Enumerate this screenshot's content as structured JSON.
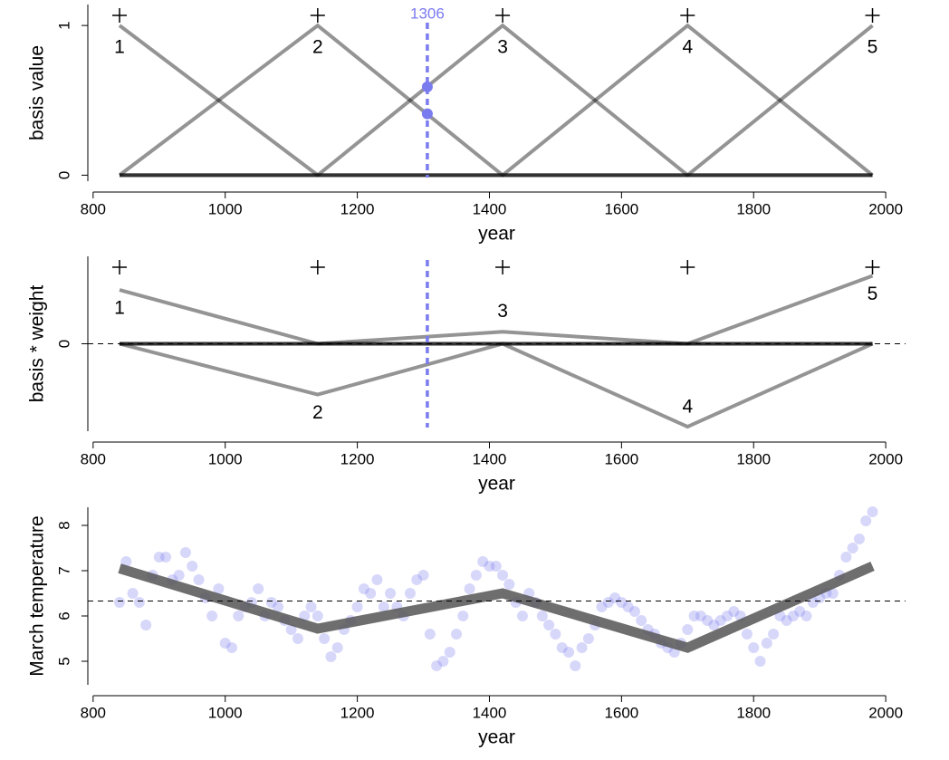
{
  "chart_data": [
    {
      "type": "line",
      "ylabel": "basis value",
      "xlabel": "year",
      "x": [
        840,
        1140,
        1420,
        1700,
        1980
      ],
      "series": [
        {
          "name": "1",
          "values": [
            1,
            0,
            0,
            0,
            0
          ]
        },
        {
          "name": "2",
          "values": [
            0,
            1,
            0,
            0,
            0
          ]
        },
        {
          "name": "3",
          "values": [
            0,
            0,
            1,
            0,
            0
          ]
        },
        {
          "name": "4",
          "values": [
            0,
            0,
            0,
            1,
            0
          ]
        },
        {
          "name": "5",
          "values": [
            0,
            0,
            0,
            0,
            1
          ]
        }
      ],
      "color": "#000000",
      "vline": 1306,
      "vline_points": [
        0.41,
        0.59
      ],
      "vline_color": "#7b7bf0",
      "xlim": [
        792,
        2030
      ],
      "xticks": [
        800,
        1000,
        1200,
        1400,
        1600,
        1800,
        2000
      ],
      "ylim": [
        -0.04,
        1.14
      ],
      "yticks": [
        0,
        1
      ]
    },
    {
      "type": "line",
      "ylabel": "basis * weight",
      "xlabel": "year",
      "x": [
        840,
        1140,
        1420,
        1700,
        1980
      ],
      "series": [
        {
          "name": "1",
          "values": [
            0.72,
            0,
            0,
            0,
            0
          ]
        },
        {
          "name": "2",
          "values": [
            0,
            -0.68,
            0,
            0,
            0
          ]
        },
        {
          "name": "3",
          "values": [
            0,
            0,
            0.16,
            0,
            0
          ]
        },
        {
          "name": "4",
          "values": [
            0,
            0,
            0,
            -1.11,
            0
          ]
        },
        {
          "name": "5",
          "values": [
            0,
            0,
            0,
            0,
            0.91
          ]
        }
      ],
      "color": "#000000",
      "vline": 1306,
      "vline_color": "#7b7bf0",
      "hline": 0,
      "xlim": [
        792,
        2030
      ],
      "xticks": [
        800,
        1000,
        1200,
        1400,
        1600,
        1800,
        2000
      ],
      "ylim": [
        -1.17,
        1.17
      ],
      "yticks": [
        0
      ]
    },
    {
      "type": "scatter",
      "ylabel": "March temperature",
      "xlabel": "year",
      "x": [
        840,
        850,
        860,
        870,
        880,
        890,
        900,
        910,
        920,
        930,
        940,
        950,
        960,
        970,
        980,
        990,
        1000,
        1010,
        1020,
        1030,
        1040,
        1050,
        1060,
        1070,
        1080,
        1090,
        1100,
        1110,
        1120,
        1130,
        1140,
        1150,
        1160,
        1170,
        1180,
        1190,
        1200,
        1210,
        1220,
        1230,
        1240,
        1250,
        1260,
        1270,
        1280,
        1290,
        1300,
        1310,
        1320,
        1330,
        1340,
        1350,
        1360,
        1370,
        1380,
        1390,
        1400,
        1410,
        1420,
        1430,
        1440,
        1450,
        1460,
        1470,
        1480,
        1490,
        1500,
        1510,
        1520,
        1530,
        1540,
        1550,
        1560,
        1570,
        1580,
        1590,
        1600,
        1610,
        1620,
        1630,
        1640,
        1650,
        1660,
        1670,
        1680,
        1690,
        1700,
        1710,
        1720,
        1730,
        1740,
        1750,
        1760,
        1770,
        1780,
        1790,
        1800,
        1810,
        1820,
        1830,
        1840,
        1850,
        1860,
        1870,
        1880,
        1890,
        1900,
        1910,
        1920,
        1930,
        1940,
        1950,
        1960,
        1970,
        1980
      ],
      "values": [
        6.3,
        7.2,
        6.5,
        6.3,
        5.8,
        6.9,
        7.3,
        7.3,
        6.8,
        6.9,
        7.4,
        7.1,
        6.8,
        6.4,
        6.0,
        6.6,
        5.4,
        5.3,
        6.0,
        6.2,
        6.3,
        6.6,
        6.0,
        6.3,
        6.2,
        5.9,
        5.7,
        5.5,
        6.0,
        6.2,
        6.0,
        5.5,
        5.1,
        5.3,
        5.7,
        5.9,
        6.2,
        6.6,
        6.5,
        6.8,
        6.2,
        6.5,
        6.2,
        6.0,
        6.5,
        6.8,
        6.9,
        5.6,
        4.9,
        5.0,
        5.2,
        5.6,
        6.0,
        6.6,
        6.9,
        7.2,
        7.1,
        7.1,
        6.9,
        6.7,
        6.3,
        6.0,
        6.5,
        6.3,
        6.0,
        5.8,
        5.6,
        5.3,
        5.2,
        4.9,
        5.3,
        5.5,
        5.8,
        6.2,
        6.3,
        6.4,
        6.3,
        6.2,
        6.1,
        5.9,
        5.7,
        5.6,
        5.4,
        5.3,
        5.2,
        5.4,
        5.7,
        6.0,
        6.0,
        5.9,
        5.8,
        5.9,
        6.0,
        6.1,
        6.0,
        5.6,
        5.3,
        5.0,
        5.4,
        5.6,
        6.0,
        5.9,
        6.0,
        6.1,
        6.0,
        6.3,
        6.4,
        6.5,
        6.5,
        6.9,
        7.3,
        7.5,
        7.7,
        8.1,
        8.3
      ],
      "color": "#7b7bf0",
      "fit": {
        "x": [
          840,
          1140,
          1420,
          1700,
          1980
        ],
        "values": [
          7.05,
          5.72,
          6.5,
          5.3,
          7.1
        ],
        "color": "#555555"
      },
      "hline": 6.33,
      "xlim": [
        792,
        2030
      ],
      "xticks": [
        800,
        1000,
        1200,
        1400,
        1600,
        1800,
        2000
      ],
      "ylim": [
        4.48,
        8.4
      ],
      "yticks": [
        5,
        6,
        7,
        8
      ]
    }
  ]
}
